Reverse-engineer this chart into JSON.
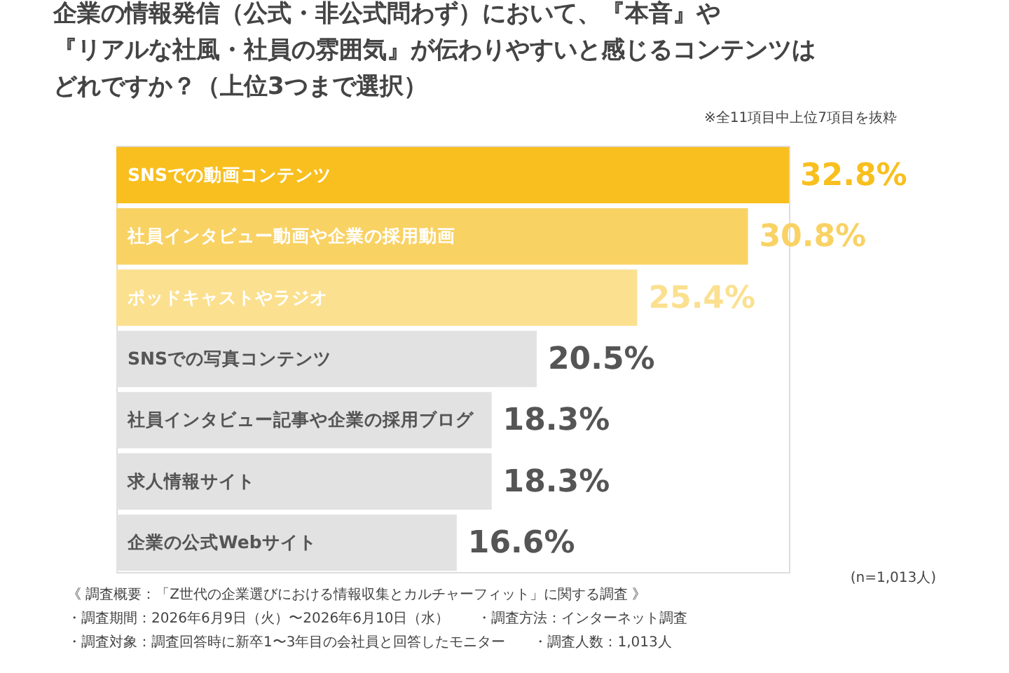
{
  "chart_data": {
    "type": "bar",
    "orientation": "horizontal",
    "title": [
      "企業の情報発信（公式・非公式問わず）において、『本音』や",
      "『リアルな社風・社員の雰囲気』が伝わりやすいと感じるコンテンツは",
      "どれですか？（上位3つまで選択）"
    ],
    "categories": [
      "SNSでの動画コンテンツ",
      "社員インタビュー動画や企業の採用動画",
      "ポッドキャストやラジオ",
      "SNSでの写真コンテンツ",
      "社員インタビュー記事や企業の採用ブログ",
      "求人情報サイト",
      "企業の公式Webサイト"
    ],
    "values": [
      32.8,
      30.8,
      25.4,
      20.5,
      18.3,
      18.3,
      16.6
    ],
    "value_labels": [
      "32.8%",
      "30.8%",
      "25.4%",
      "20.5%",
      "18.3%",
      "18.3%",
      "16.6%"
    ],
    "colors": [
      "#f8bf1e",
      "#f9d264",
      "#fbe08f",
      "#e2e2e2",
      "#e2e2e2",
      "#e2e2e2",
      "#e2e2e2"
    ],
    "annotations": [
      "※全11項目中上位7項目を抜粋",
      "(n=1,013人)",
      "《 調査概要：「Z世代の企業選びにおける情報収集とカルチャーフィット」に関する調査 》",
      "・調査期間：2026年6月9日（火）〜2026年6月10日（水）　　・調査方法：インターネット調査",
      "・調査対象：調査回答時に新卒1〜3年目の会社員と回答したモニター　　・調査人数：1,013人"
    ]
  }
}
